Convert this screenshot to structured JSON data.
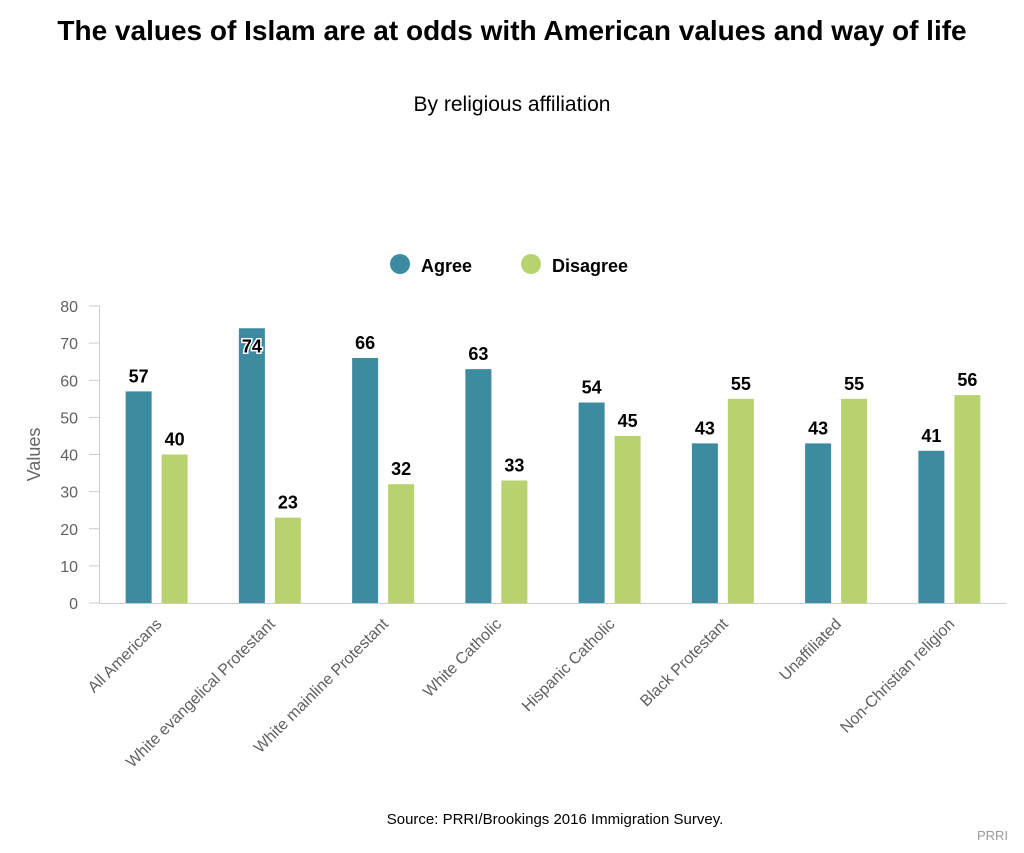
{
  "chart_data": {
    "type": "bar",
    "title": "The values of Islam are at odds with American values and way of life",
    "subtitle": "By religious affiliation",
    "xlabel": "",
    "ylabel": "Values",
    "ylim": [
      0,
      80
    ],
    "yticks": [
      0,
      10,
      20,
      30,
      40,
      50,
      60,
      70,
      80
    ],
    "categories": [
      "All Americans",
      "White evangelical Protestant",
      "White mainline Protestant",
      "White Catholic",
      "Hispanic Catholic",
      "Black Protestant",
      "Unaffiliated",
      "Non-Christian religion"
    ],
    "series": [
      {
        "name": "Agree",
        "color": "#3d8ba0",
        "values": [
          57,
          74,
          66,
          63,
          54,
          43,
          43,
          41
        ]
      },
      {
        "name": "Disagree",
        "color": "#b8d36e",
        "values": [
          40,
          23,
          32,
          33,
          45,
          55,
          55,
          56
        ]
      }
    ],
    "legend_position": "top-center",
    "grid": false
  },
  "source": "Source: PRRI/Brookings 2016 Immigration Survey.",
  "credit": "PRRI"
}
